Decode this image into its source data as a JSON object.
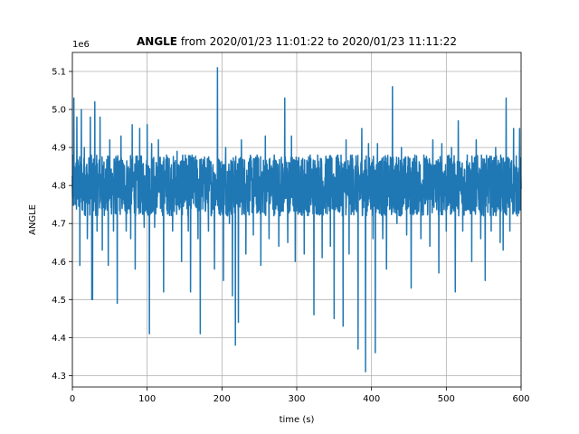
{
  "chart_data": {
    "type": "line",
    "title": {
      "bold_part": "ANGLE",
      "rest": " from 2020/01/23 11:01:22 to 2020/01/23 11:11:22"
    },
    "xlabel": "time (s)",
    "ylabel": "ANGLE",
    "y_offset_label": "1e6",
    "xlim": [
      0,
      600
    ],
    "ylim": [
      4.27,
      5.15
    ],
    "x_ticks": [
      0,
      100,
      200,
      300,
      400,
      500,
      600
    ],
    "y_ticks": [
      4.3,
      4.4,
      4.5,
      4.6,
      4.7,
      4.8,
      4.9,
      5.0,
      5.1
    ],
    "x_tick_labels": [
      "0",
      "100",
      "200",
      "300",
      "400",
      "500",
      "600"
    ],
    "y_tick_labels": [
      "4.3",
      "4.4",
      "4.5",
      "4.6",
      "4.7",
      "4.8",
      "4.9",
      "5.0",
      "5.1"
    ],
    "grid": true,
    "series_color": "#1f77b4",
    "series": [
      {
        "values_note": "",
        "x": [],
        "y": [],
        "baseline": 4.8,
        "noise_band": [
          4.72,
          4.88
        ],
        "spikes": [
          [
            2,
            5.03
          ],
          [
            4,
            4.75
          ],
          [
            6,
            4.98
          ],
          [
            10,
            4.59
          ],
          [
            12,
            5.0
          ],
          [
            16,
            4.9
          ],
          [
            20,
            4.66
          ],
          [
            24,
            4.98
          ],
          [
            26,
            4.5
          ],
          [
            27,
            4.5
          ],
          [
            30,
            5.02
          ],
          [
            33,
            4.68
          ],
          [
            37,
            4.98
          ],
          [
            40,
            4.63
          ],
          [
            48,
            4.59
          ],
          [
            50,
            4.92
          ],
          [
            55,
            4.68
          ],
          [
            60,
            4.49
          ],
          [
            65,
            4.93
          ],
          [
            72,
            4.68
          ],
          [
            78,
            4.66
          ],
          [
            80,
            4.96
          ],
          [
            84,
            4.58
          ],
          [
            90,
            4.95
          ],
          [
            96,
            4.69
          ],
          [
            100,
            4.96
          ],
          [
            103,
            4.41
          ],
          [
            106,
            4.91
          ],
          [
            110,
            4.69
          ],
          [
            115,
            4.92
          ],
          [
            122,
            4.52
          ],
          [
            126,
            4.88
          ],
          [
            134,
            4.68
          ],
          [
            140,
            4.89
          ],
          [
            146,
            4.6
          ],
          [
            151,
            4.88
          ],
          [
            155,
            4.68
          ],
          [
            158,
            4.52
          ],
          [
            160,
            4.88
          ],
          [
            168,
            4.66
          ],
          [
            171,
            4.41
          ],
          [
            176,
            4.86
          ],
          [
            182,
            4.68
          ],
          [
            190,
            4.58
          ],
          [
            194,
            5.11
          ],
          [
            202,
            4.55
          ],
          [
            205,
            4.9
          ],
          [
            210,
            4.7
          ],
          [
            214,
            4.51
          ],
          [
            218,
            4.38
          ],
          [
            222,
            4.44
          ],
          [
            226,
            4.92
          ],
          [
            232,
            4.62
          ],
          [
            237,
            4.87
          ],
          [
            242,
            4.67
          ],
          [
            247,
            4.88
          ],
          [
            252,
            4.59
          ],
          [
            258,
            4.93
          ],
          [
            263,
            4.66
          ],
          [
            270,
            4.88
          ],
          [
            276,
            4.64
          ],
          [
            284,
            5.03
          ],
          [
            288,
            4.65
          ],
          [
            293,
            4.93
          ],
          [
            298,
            4.6
          ],
          [
            305,
            4.85
          ],
          [
            310,
            4.62
          ],
          [
            318,
            4.88
          ],
          [
            323,
            4.46
          ],
          [
            328,
            4.88
          ],
          [
            334,
            4.61
          ],
          [
            340,
            4.87
          ],
          [
            345,
            4.64
          ],
          [
            350,
            4.45
          ],
          [
            355,
            4.88
          ],
          [
            362,
            4.43
          ],
          [
            366,
            4.92
          ],
          [
            370,
            4.62
          ],
          [
            374,
            4.88
          ],
          [
            382,
            4.37
          ],
          [
            387,
            4.95
          ],
          [
            392,
            4.31
          ],
          [
            396,
            4.91
          ],
          [
            402,
            4.66
          ],
          [
            405,
            4.36
          ],
          [
            408,
            4.91
          ],
          [
            415,
            4.66
          ],
          [
            420,
            4.58
          ],
          [
            428,
            5.06
          ],
          [
            434,
            4.7
          ],
          [
            440,
            4.9
          ],
          [
            447,
            4.67
          ],
          [
            453,
            4.53
          ],
          [
            458,
            4.88
          ],
          [
            466,
            4.66
          ],
          [
            470,
            4.88
          ],
          [
            478,
            4.64
          ],
          [
            482,
            4.92
          ],
          [
            490,
            4.57
          ],
          [
            494,
            4.91
          ],
          [
            500,
            4.68
          ],
          [
            507,
            4.9
          ],
          [
            512,
            4.52
          ],
          [
            516,
            4.97
          ],
          [
            522,
            4.68
          ],
          [
            528,
            4.88
          ],
          [
            534,
            4.6
          ],
          [
            540,
            4.92
          ],
          [
            546,
            4.66
          ],
          [
            552,
            4.55
          ],
          [
            556,
            4.87
          ],
          [
            560,
            4.68
          ],
          [
            566,
            4.9
          ],
          [
            572,
            4.65
          ],
          [
            576,
            4.63
          ],
          [
            580,
            5.03
          ],
          [
            585,
            4.68
          ],
          [
            590,
            4.95
          ],
          [
            595,
            4.72
          ],
          [
            598,
            4.95
          ]
        ]
      }
    ]
  }
}
